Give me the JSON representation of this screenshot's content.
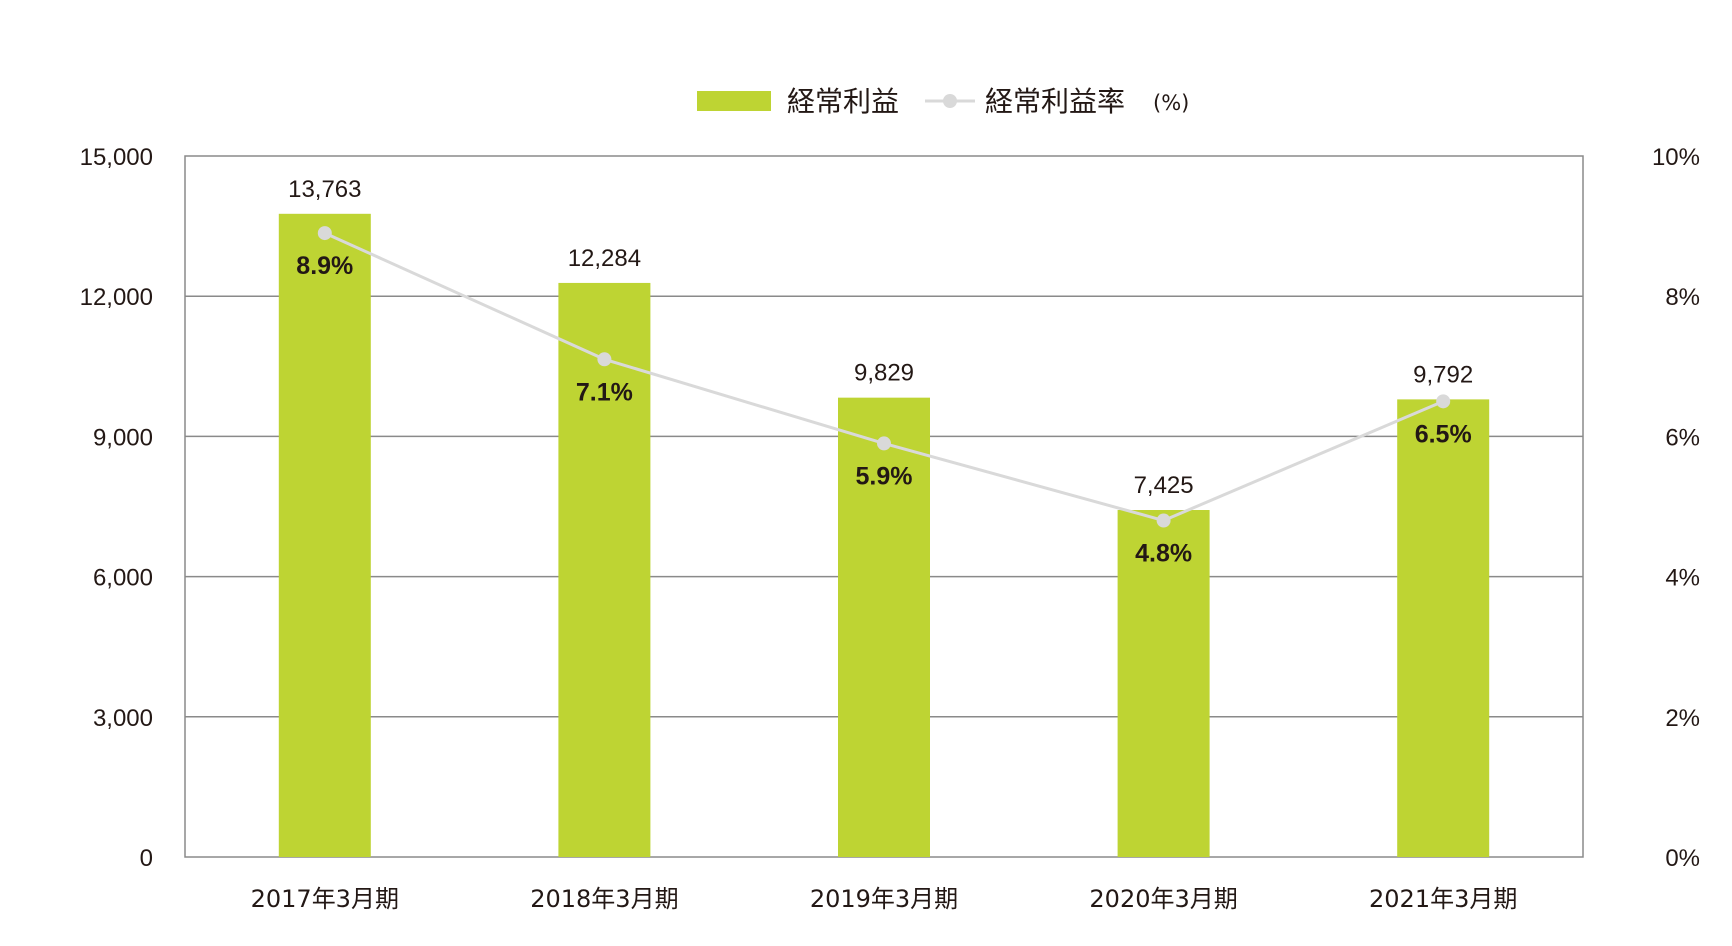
{
  "chart_data": {
    "type": "bar",
    "categories": [
      "2017年3月期",
      "2018年3月期",
      "2019年3月期",
      "2020年3月期",
      "2021年3月期"
    ],
    "series": [
      {
        "name": "経常利益",
        "type": "bar",
        "axis": "left",
        "values": [
          13763,
          12284,
          9829,
          7425,
          9792
        ],
        "value_labels": [
          "13,763",
          "12,284",
          "9,829",
          "7,425",
          "9,792"
        ]
      },
      {
        "name": "経常利益率",
        "unit_label": "(%)",
        "type": "line",
        "axis": "right",
        "values": [
          8.9,
          7.1,
          5.9,
          4.8,
          6.5
        ],
        "value_labels": [
          "8.9%",
          "7.1%",
          "5.9%",
          "4.8%",
          "6.5%"
        ]
      }
    ],
    "y_left": {
      "ylim": [
        0,
        15000
      ],
      "ticks": [
        0,
        3000,
        6000,
        9000,
        12000,
        15000
      ],
      "tick_labels": [
        "0",
        "3,000",
        "6,000",
        "9,000",
        "12,000",
        "15,000"
      ]
    },
    "y_right": {
      "ylim": [
        0,
        10
      ],
      "ticks": [
        0,
        2,
        4,
        6,
        8,
        10
      ],
      "tick_labels": [
        "0%",
        "2%",
        "4%",
        "6%",
        "8%",
        "10%"
      ]
    },
    "grid": true,
    "legend_position": "top-center",
    "colors": {
      "bar": "#bed433",
      "line": "#d9d9d9",
      "grid": "#8a8a8a",
      "text": "#231815"
    }
  }
}
